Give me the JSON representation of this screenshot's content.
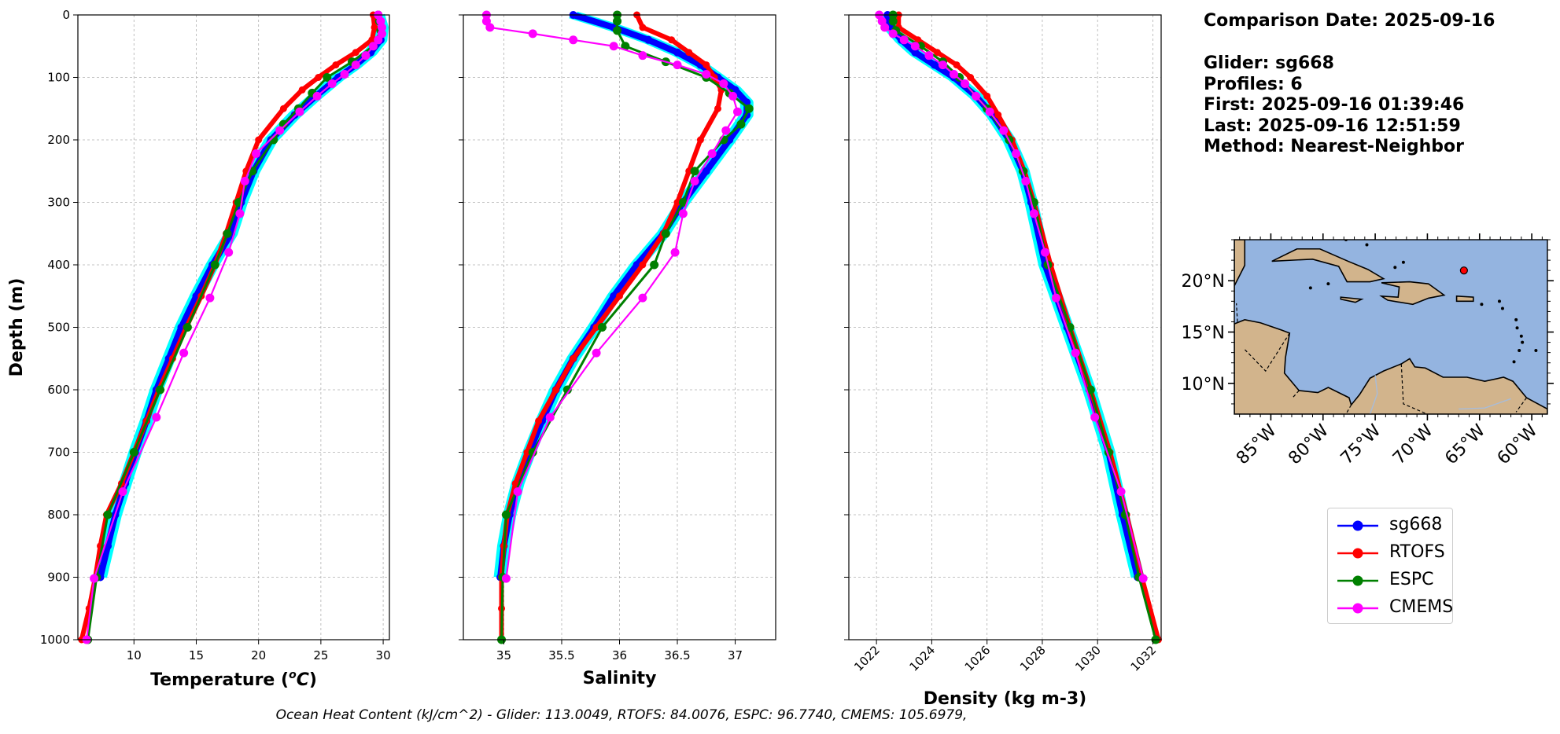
{
  "info": {
    "comparison_date": "Comparison Date: 2025-09-16",
    "glider": "Glider: sg668",
    "profiles": "Profiles: 6",
    "first": "First: 2025-09-16 01:39:46",
    "last": "Last: 2025-09-16 12:51:59",
    "method": "Method: Nearest-Neighbor"
  },
  "ohc_note": "Ocean Heat Content (kJ/cm^2) - Glider: 113.0049,  RTOFS: 84.0076,  ESPC: 96.7740,  CMEMS: 105.6979,",
  "colors": {
    "sg668": "#0000ff",
    "sg668_spread": "#00ffff",
    "RTOFS": "#ff0000",
    "ESPC": "#008000",
    "CMEMS": "#ff00ff",
    "ocean": "#94b4e0",
    "land": "#d2b48c"
  },
  "legend": [
    {
      "name": "sg668",
      "color": "#0000ff"
    },
    {
      "name": "RTOFS",
      "color": "#ff0000"
    },
    {
      "name": "ESPC",
      "color": "#008000"
    },
    {
      "name": "CMEMS",
      "color": "#ff00ff"
    }
  ],
  "map": {
    "lat_labels": [
      "20°N",
      "15°N",
      "10°N"
    ],
    "lon_labels": [
      "85°W",
      "80°W",
      "75°W",
      "70°W",
      "65°W",
      "60°W"
    ],
    "glider_lon": -66.5,
    "glider_lat": 21.0
  },
  "chart_data": [
    {
      "type": "line",
      "xlabel": "Temperature (°C)",
      "ylabel": "Depth (m)",
      "xlim": [
        5.5,
        30.5
      ],
      "ylim": [
        1000,
        0
      ],
      "xticks": [
        10,
        15,
        20,
        25,
        30
      ],
      "yticks": [
        0,
        100,
        200,
        300,
        400,
        500,
        600,
        700,
        800,
        900,
        1000
      ],
      "grid": true,
      "series": [
        {
          "name": "sg668",
          "depth": [
            0,
            20,
            40,
            60,
            80,
            100,
            130,
            160,
            200,
            250,
            300,
            350,
            400,
            450,
            500,
            550,
            600,
            650,
            700,
            750,
            800,
            850,
            900
          ],
          "values": [
            29.6,
            29.9,
            29.8,
            29.0,
            27.8,
            26.4,
            24.6,
            22.9,
            21.0,
            19.6,
            18.6,
            17.8,
            16.3,
            15.0,
            13.8,
            12.8,
            11.8,
            11.0,
            10.1,
            9.3,
            8.5,
            7.9,
            7.3
          ]
        },
        {
          "name": "RTOFS",
          "depth": [
            0,
            20,
            40,
            60,
            80,
            100,
            120,
            150,
            200,
            250,
            300,
            350,
            400,
            450,
            500,
            550,
            600,
            650,
            700,
            750,
            800,
            850,
            900,
            950,
            1000
          ],
          "values": [
            29.2,
            29.3,
            29.1,
            27.8,
            26.2,
            24.8,
            23.5,
            22.0,
            20.0,
            19.0,
            18.2,
            17.4,
            16.5,
            15.4,
            14.2,
            13.1,
            12.0,
            11.0,
            10.0,
            9.0,
            7.8,
            7.3,
            6.9,
            6.4,
            5.8
          ]
        },
        {
          "name": "ESPC",
          "depth": [
            0,
            10,
            25,
            50,
            75,
            100,
            125,
            150,
            175,
            200,
            250,
            300,
            350,
            400,
            500,
            600,
            700,
            800,
            900,
            1000
          ],
          "values": [
            29.6,
            29.7,
            29.8,
            29.2,
            27.5,
            25.5,
            24.3,
            23.2,
            22.0,
            21.2,
            19.5,
            18.4,
            17.5,
            16.5,
            14.3,
            12.1,
            10.0,
            7.9,
            7.0,
            6.3
          ]
        },
        {
          "name": "CMEMS",
          "depth": [
            0,
            10,
            20,
            30,
            40,
            50,
            65,
            80,
            95,
            110,
            130,
            155,
            185,
            222,
            266,
            318,
            380,
            453,
            541,
            644,
            763,
            902,
            1000
          ],
          "values": [
            29.6,
            29.8,
            29.9,
            29.9,
            29.6,
            29.2,
            28.6,
            27.8,
            26.9,
            25.9,
            24.7,
            23.3,
            21.7,
            19.8,
            18.9,
            18.5,
            17.6,
            16.1,
            14.0,
            11.8,
            9.1,
            6.8,
            6.2
          ]
        }
      ]
    },
    {
      "type": "line",
      "xlabel": "Salinity",
      "ylabel": "",
      "xlim": [
        34.65,
        37.35
      ],
      "ylim": [
        1000,
        0
      ],
      "xticks": [
        35.0,
        35.5,
        36.0,
        36.5,
        37.0
      ],
      "grid": true,
      "series": [
        {
          "name": "sg668",
          "depth": [
            0,
            20,
            40,
            60,
            80,
            100,
            120,
            140,
            160,
            200,
            250,
            300,
            350,
            400,
            450,
            500,
            550,
            600,
            650,
            700,
            750,
            800,
            850,
            900
          ],
          "values": [
            35.6,
            35.95,
            36.25,
            36.5,
            36.7,
            36.85,
            37.0,
            37.1,
            37.1,
            36.95,
            36.75,
            36.55,
            36.38,
            36.15,
            35.95,
            35.78,
            35.6,
            35.45,
            35.33,
            35.22,
            35.12,
            35.05,
            35.0,
            34.97
          ]
        },
        {
          "name": "RTOFS",
          "depth": [
            0,
            20,
            40,
            60,
            80,
            100,
            120,
            150,
            200,
            250,
            300,
            350,
            400,
            450,
            500,
            550,
            600,
            650,
            700,
            750,
            800,
            850,
            900,
            950,
            1000
          ],
          "values": [
            36.15,
            36.2,
            36.45,
            36.6,
            36.75,
            36.82,
            36.88,
            36.85,
            36.7,
            36.6,
            36.5,
            36.38,
            36.2,
            36.0,
            35.8,
            35.6,
            35.45,
            35.3,
            35.2,
            35.1,
            35.03,
            35.0,
            34.98,
            34.98,
            34.98
          ]
        },
        {
          "name": "ESPC",
          "depth": [
            0,
            10,
            25,
            50,
            75,
            100,
            125,
            150,
            175,
            200,
            250,
            300,
            350,
            400,
            500,
            600,
            700,
            800,
            900,
            1000
          ],
          "values": [
            35.98,
            35.98,
            35.98,
            36.05,
            36.4,
            36.75,
            36.95,
            37.12,
            37.05,
            36.9,
            36.65,
            36.55,
            36.4,
            36.3,
            35.85,
            35.55,
            35.25,
            35.02,
            34.99,
            34.98
          ]
        },
        {
          "name": "CMEMS",
          "depth": [
            0,
            10,
            20,
            30,
            40,
            50,
            65,
            80,
            95,
            110,
            130,
            155,
            185,
            222,
            266,
            318,
            380,
            453,
            541,
            644,
            763,
            902
          ],
          "values": [
            34.85,
            34.85,
            34.88,
            35.25,
            35.6,
            35.95,
            36.2,
            36.5,
            36.75,
            36.9,
            36.98,
            37.02,
            36.92,
            36.8,
            36.65,
            36.55,
            36.48,
            36.2,
            35.8,
            35.4,
            35.12,
            35.02
          ]
        }
      ]
    },
    {
      "type": "line",
      "xlabel": "Density (kg m-3)",
      "ylabel": "",
      "xlim": [
        1021.0,
        1032.3
      ],
      "ylim": [
        1000,
        0
      ],
      "xticks": [
        1022,
        1024,
        1026,
        1028,
        1030,
        1032
      ],
      "grid": true,
      "series": [
        {
          "name": "sg668",
          "depth": [
            0,
            20,
            40,
            60,
            80,
            100,
            130,
            160,
            200,
            250,
            300,
            400,
            500,
            600,
            700,
            800,
            900
          ],
          "values": [
            1022.4,
            1022.5,
            1022.9,
            1023.4,
            1024.1,
            1024.8,
            1025.6,
            1026.2,
            1026.8,
            1027.3,
            1027.6,
            1028.1,
            1028.9,
            1029.7,
            1030.4,
            1030.9,
            1031.45
          ]
        },
        {
          "name": "RTOFS",
          "depth": [
            0,
            20,
            40,
            60,
            80,
            100,
            130,
            160,
            200,
            250,
            300,
            400,
            500,
            600,
            700,
            800,
            900,
            1000
          ],
          "values": [
            1022.8,
            1022.8,
            1023.5,
            1024.2,
            1024.9,
            1025.4,
            1026.0,
            1026.4,
            1026.9,
            1027.35,
            1027.7,
            1028.3,
            1029.0,
            1029.75,
            1030.45,
            1031.05,
            1031.6,
            1032.2
          ]
        },
        {
          "name": "ESPC",
          "depth": [
            0,
            10,
            25,
            50,
            75,
            100,
            150,
            200,
            250,
            300,
            400,
            500,
            600,
            700,
            800,
            900,
            1000
          ],
          "values": [
            1022.6,
            1022.6,
            1022.7,
            1023.6,
            1024.4,
            1025.0,
            1026.0,
            1026.8,
            1027.3,
            1027.7,
            1028.2,
            1029.0,
            1029.75,
            1030.4,
            1031.0,
            1031.5,
            1032.1
          ]
        },
        {
          "name": "CMEMS",
          "depth": [
            0,
            10,
            20,
            30,
            40,
            50,
            65,
            80,
            95,
            110,
            130,
            155,
            185,
            222,
            266,
            318,
            380,
            453,
            541,
            644,
            763,
            902
          ],
          "values": [
            1022.1,
            1022.2,
            1022.3,
            1022.6,
            1023.0,
            1023.4,
            1023.9,
            1024.4,
            1024.8,
            1025.2,
            1025.6,
            1026.1,
            1026.6,
            1027.05,
            1027.4,
            1027.7,
            1028.1,
            1028.5,
            1029.2,
            1029.9,
            1030.85,
            1031.65
          ]
        }
      ]
    }
  ]
}
